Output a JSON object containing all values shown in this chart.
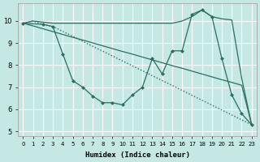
{
  "xlabel": "Humidex (Indice chaleur)",
  "background_color": "#c5e8e5",
  "grid_color": "#ffffff",
  "line_color": "#2a6e62",
  "xlim": [
    -0.5,
    23.5
  ],
  "ylim": [
    4.8,
    10.8
  ],
  "xticks": [
    0,
    1,
    2,
    3,
    4,
    5,
    6,
    7,
    8,
    9,
    10,
    11,
    12,
    13,
    14,
    15,
    16,
    17,
    18,
    19,
    20,
    21,
    22,
    23
  ],
  "yticks": [
    5,
    6,
    7,
    8,
    9,
    10
  ],
  "line1_x": [
    0,
    1,
    2,
    3,
    4,
    5,
    6,
    7,
    8,
    9,
    10,
    11,
    12,
    13,
    14,
    15,
    16,
    17,
    18,
    19,
    20,
    21,
    22,
    23
  ],
  "line1_y": [
    9.9,
    10.0,
    9.95,
    9.9,
    9.9,
    9.9,
    9.9,
    9.9,
    9.9,
    9.9,
    9.9,
    9.9,
    9.9,
    9.9,
    9.9,
    9.9,
    10.0,
    10.2,
    10.5,
    10.2,
    10.1,
    10.05,
    7.4,
    5.3
  ],
  "line1_style": "solid",
  "line2_x": [
    0,
    1,
    2,
    3,
    4,
    5,
    6,
    7,
    8,
    9,
    10,
    11,
    12,
    13,
    14,
    15,
    16,
    17,
    18,
    19,
    20,
    21,
    22,
    23
  ],
  "line2_y": [
    9.9,
    9.78,
    9.65,
    9.52,
    9.39,
    9.26,
    9.14,
    9.01,
    8.88,
    8.75,
    8.62,
    8.5,
    8.37,
    8.24,
    8.11,
    7.98,
    7.86,
    7.73,
    7.6,
    7.47,
    7.34,
    7.22,
    7.09,
    5.3
  ],
  "line2_style": "solid",
  "line3_x": [
    0,
    1,
    2,
    3,
    23
  ],
  "line3_y": [
    9.9,
    10.0,
    9.85,
    9.75,
    5.3
  ],
  "line3_style": "dotted",
  "line4_x": [
    0,
    2,
    3,
    4,
    5,
    6,
    7,
    8,
    9,
    10,
    11,
    12,
    13,
    14,
    15,
    16,
    17,
    18,
    19,
    20,
    21,
    22,
    23
  ],
  "line4_y": [
    9.9,
    9.85,
    9.75,
    8.5,
    7.3,
    7.0,
    6.6,
    6.3,
    6.3,
    6.2,
    6.65,
    7.0,
    8.3,
    7.6,
    8.65,
    8.65,
    10.3,
    10.5,
    10.2,
    8.3,
    6.65,
    5.8,
    5.3
  ],
  "line4_style": "solid"
}
